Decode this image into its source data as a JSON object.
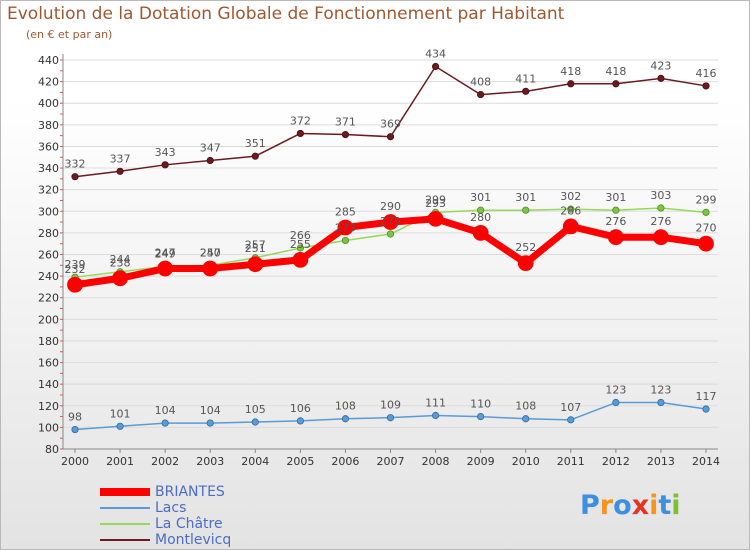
{
  "title": "Evolution de la Dotation Globale de Fonctionnement par Habitant",
  "subtitle": "(en € et par an)",
  "logo": {
    "text": "Proxiti",
    "letters": [
      "P",
      "r",
      "o",
      "x",
      "i",
      "t",
      "i"
    ],
    "colors": [
      "#3d8fe0",
      "#f7941d",
      "#3d8fe0",
      "#e63323",
      "#f7941d",
      "#3d8fe0",
      "#7dbf2f"
    ]
  },
  "chart_data": {
    "type": "line",
    "categories": [
      "2000",
      "2001",
      "2002",
      "2003",
      "2004",
      "2005",
      "2006",
      "2007",
      "2008",
      "2009",
      "2010",
      "2011",
      "2012",
      "2013",
      "2014"
    ],
    "ylim": [
      80,
      440
    ],
    "yticks": [
      80,
      100,
      120,
      140,
      160,
      180,
      200,
      220,
      240,
      260,
      280,
      300,
      320,
      340,
      360,
      380,
      400,
      420,
      440
    ],
    "grid": "horizontal",
    "legend_position": "bottom-left",
    "series": [
      {
        "name": "Montlevicq",
        "color": "#6b1a1f",
        "values": [
          332,
          337,
          343,
          347,
          351,
          372,
          371,
          369,
          434,
          408,
          411,
          418,
          418,
          423,
          416
        ]
      },
      {
        "name": "La Châtre",
        "color": "#94d95a",
        "values": [
          239,
          244,
          249,
          250,
          257,
          266,
          273,
          279,
          299,
          301,
          301,
          302,
          301,
          303,
          299
        ]
      },
      {
        "name": "BRIANTES",
        "color": "#ff0000",
        "values": [
          232,
          238,
          247,
          247,
          251,
          255,
          285,
          290,
          293,
          280,
          252,
          286,
          276,
          276,
          270
        ]
      },
      {
        "name": "Lacs",
        "color": "#5a9bd5",
        "values": [
          98,
          101,
          104,
          104,
          105,
          106,
          108,
          109,
          111,
          110,
          108,
          107,
          123,
          123,
          117
        ]
      }
    ],
    "legend_order": [
      "BRIANTES",
      "Lacs",
      "La Châtre",
      "Montlevicq"
    ]
  }
}
